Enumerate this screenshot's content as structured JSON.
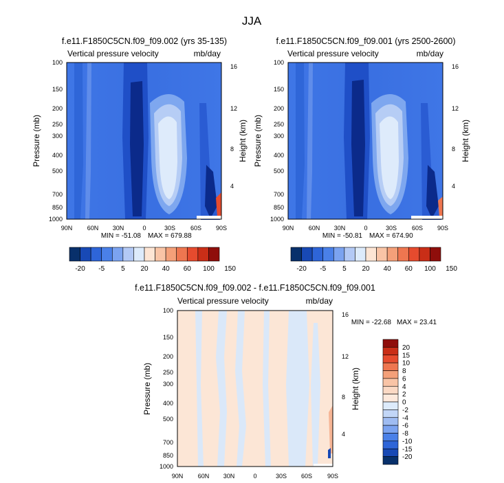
{
  "figure_title": "JJA",
  "chart_data": [
    {
      "type": "heatmap",
      "title": "f.e11.F1850C5CN.f09_f09.002 (yrs 35-135)",
      "subtitle_left": "Vertical pressure velocity",
      "subtitle_right": "mb/day",
      "ylabel": "Pressure (mb)",
      "ylabel_right": "Height (km)",
      "x_ticks": [
        "90N",
        "60N",
        "30N",
        "0",
        "30S",
        "60S",
        "90S"
      ],
      "y_ticks": [
        "100",
        "150",
        "200",
        "250",
        "300",
        "400",
        "500",
        "700",
        "850",
        "1000"
      ],
      "y_right_ticks": [
        "16",
        "12",
        "8",
        "4"
      ],
      "min_label": "MIN = -51.08",
      "max_label": "MAX = 679.88",
      "min": -51.08,
      "max": 679.88
    },
    {
      "type": "heatmap",
      "title": "f.e11.F1850C5CN.f09_f09.001 (yrs 2500-2600)",
      "subtitle_left": "Vertical pressure velocity",
      "subtitle_right": "mb/day",
      "ylabel": "Pressure (mb)",
      "ylabel_right": "Height (km)",
      "x_ticks": [
        "90N",
        "60N",
        "30N",
        "0",
        "30S",
        "60S",
        "90S"
      ],
      "y_ticks": [
        "100",
        "150",
        "200",
        "250",
        "300",
        "400",
        "500",
        "700",
        "850",
        "1000"
      ],
      "y_right_ticks": [
        "16",
        "12",
        "8",
        "4"
      ],
      "min_label": "MIN = -50.81",
      "max_label": "MAX = 674.90",
      "min": -50.81,
      "max": 674.9
    },
    {
      "type": "heatmap",
      "title": "f.e11.F1850C5CN.f09_f09.002 - f.e11.F1850C5CN.f09_f09.001",
      "subtitle_left": "Vertical pressure velocity",
      "subtitle_right": "mb/day",
      "ylabel": "Pressure (mb)",
      "ylabel_right": "Height (km)",
      "x_ticks": [
        "90N",
        "60N",
        "30N",
        "0",
        "30S",
        "60S",
        "90S"
      ],
      "y_ticks": [
        "100",
        "150",
        "200",
        "250",
        "300",
        "400",
        "500",
        "700",
        "850",
        "1000"
      ],
      "y_right_ticks": [
        "16",
        "12",
        "8",
        "4"
      ],
      "min_label": "MIN = -22.68",
      "max_label": "MAX = 23.41",
      "min": -22.68,
      "max": 23.41
    }
  ],
  "colorbar_top": {
    "labels": [
      "-20",
      "-5",
      "5",
      "20",
      "40",
      "60",
      "100",
      "150"
    ],
    "colors": [
      "#08306b",
      "#1849b5",
      "#2e65d8",
      "#4a80e8",
      "#7ba3f0",
      "#b3c9f5",
      "#ddebfb",
      "#fde5d4",
      "#f9c4a6",
      "#f4a079",
      "#ee7650",
      "#e64b2e",
      "#c92e17",
      "#8f0e0b"
    ]
  },
  "colorbar_diff": {
    "labels": [
      "20",
      "15",
      "10",
      "8",
      "6",
      "4",
      "2",
      "0",
      "-2",
      "-4",
      "-6",
      "-8",
      "-10",
      "-15",
      "-20"
    ],
    "colors": [
      "#8f0e0b",
      "#c92e17",
      "#e64b2e",
      "#ee7650",
      "#f4a079",
      "#f9c4a6",
      "#fbd9c4",
      "#fde9dc",
      "#ddebfb",
      "#c2d6f7",
      "#9fbcf2",
      "#7ba3f0",
      "#4a80e8",
      "#2e65d8",
      "#1849b5",
      "#08306b"
    ]
  },
  "field_colors": {
    "base": "#3f76e6",
    "deep": "#1f4fc7",
    "darkest": "#0b2a8a",
    "light": "#7ea7ef",
    "lighter": "#b6cdf5",
    "palest": "#deebfb",
    "warm": "#fde5d4",
    "hot": "#e64b2e",
    "diff_pos": "#fce6d6",
    "diff_neg": "#dae8f9"
  }
}
